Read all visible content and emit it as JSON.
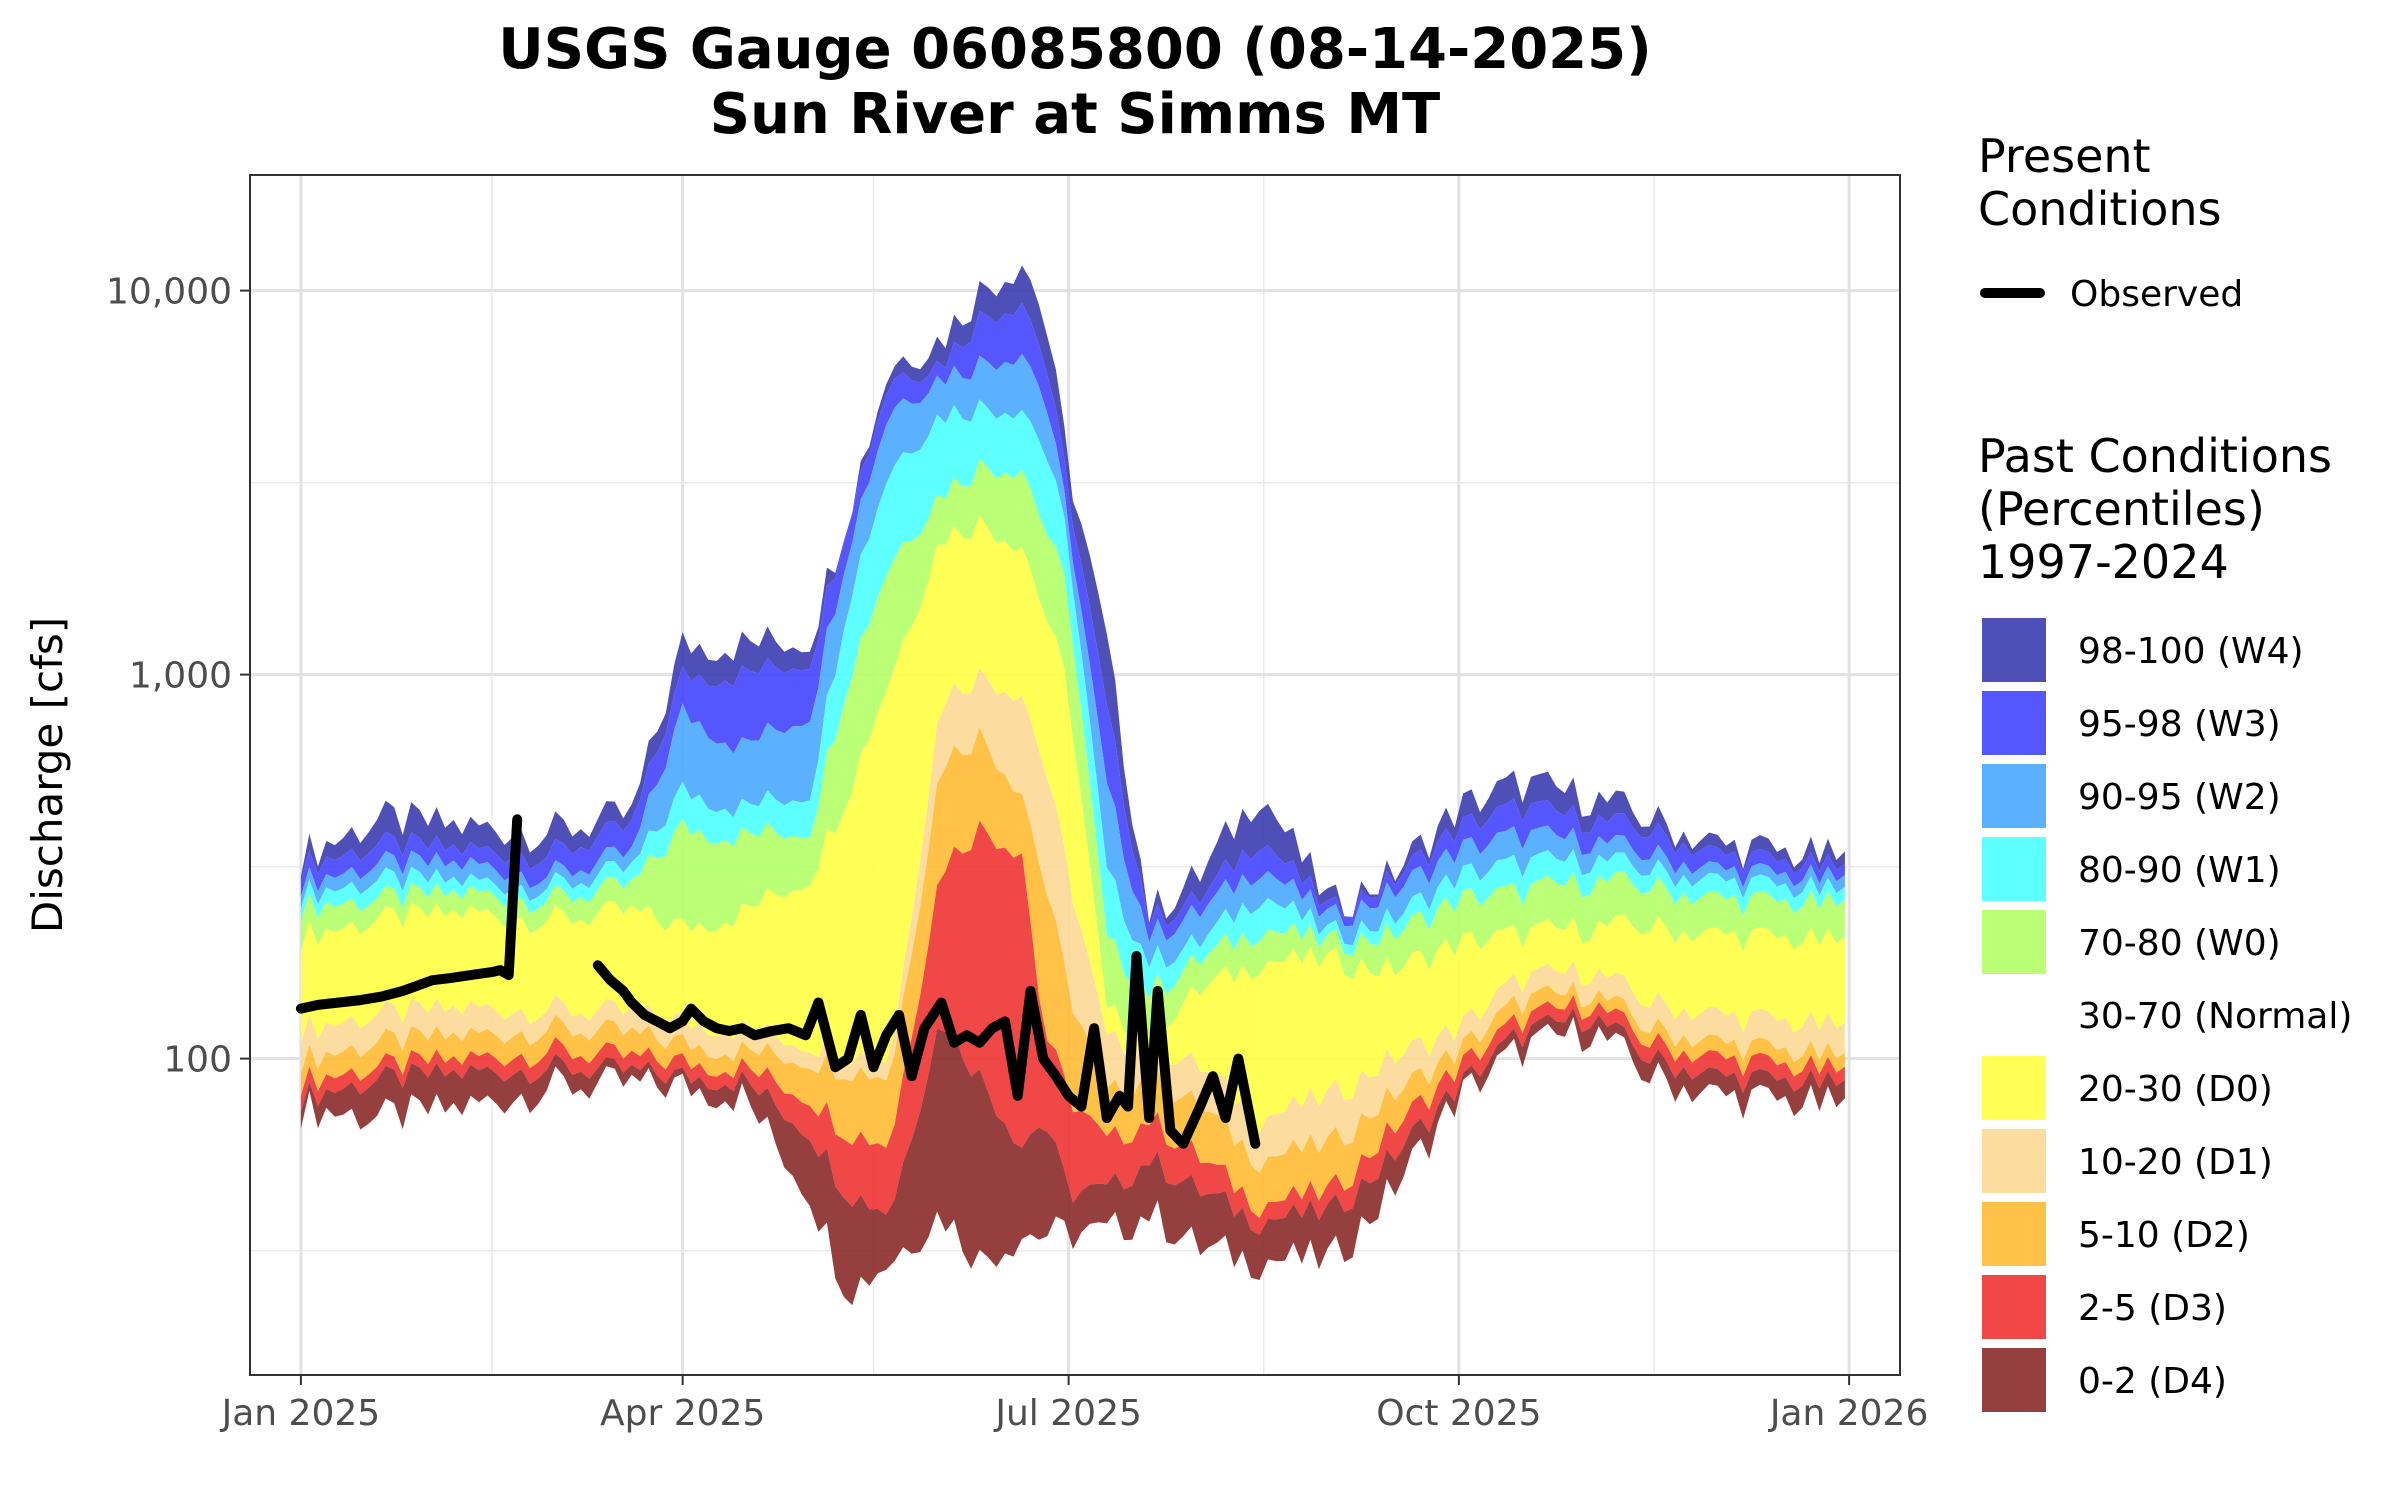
{
  "chart_data": {
    "type": "area",
    "title": "USGS Gauge 06085800 (08-14-2025)",
    "subtitle": "Sun River at Simms MT",
    "xlabel": "",
    "ylabel": "Discharge [cfs]",
    "y_scale": "log10",
    "ylim": [
      15,
      20000
    ],
    "xlim": [
      "2024-12-20",
      "2026-01-13"
    ],
    "x_ticks": [
      {
        "date": "2025-01-01",
        "label": "Jan 2025"
      },
      {
        "date": "2025-04-01",
        "label": "Apr 2025"
      },
      {
        "date": "2025-07-01",
        "label": "Jul 2025"
      },
      {
        "date": "2025-10-01",
        "label": "Oct 2025"
      },
      {
        "date": "2026-01-01",
        "label": "Jan 2026"
      }
    ],
    "x_minor_ticks": [
      "2025-02-15",
      "2025-05-16",
      "2025-08-16",
      "2025-11-16"
    ],
    "y_ticks": [
      {
        "value": 100,
        "label": "100"
      },
      {
        "value": 1000,
        "label": "1,000"
      },
      {
        "value": 10000,
        "label": "10,000"
      }
    ],
    "y_minor_ticks": [
      31.6,
      316,
      3160
    ],
    "grid": true,
    "legend_position": "right",
    "legend": {
      "present_title_line1": "Present",
      "present_title_line2": "Conditions",
      "observed_label": "Observed",
      "past_title_line1": "Past Conditions",
      "past_title_line2": "(Percentiles)",
      "past_title_line3": "1997-2024"
    },
    "percentile_dates": [
      "2025-01-01",
      "2025-01-20",
      "2025-02-10",
      "2025-03-01",
      "2025-03-20",
      "2025-04-01",
      "2025-04-15",
      "2025-05-01",
      "2025-05-10",
      "2025-05-20",
      "2025-06-01",
      "2025-06-10",
      "2025-06-20",
      "2025-06-25",
      "2025-07-01",
      "2025-07-10",
      "2025-07-20",
      "2025-08-01",
      "2025-08-15",
      "2025-09-01",
      "2025-09-15",
      "2025-10-01",
      "2025-10-15",
      "2025-11-01",
      "2025-11-15",
      "2025-12-01",
      "2025-12-31"
    ],
    "bands": [
      {
        "label": "98-100 (W4)",
        "color": "#3c3cb0",
        "low": "p95",
        "high": "p100"
      },
      {
        "label": "95-98 (W3)",
        "color": "#4444ff",
        "low": "p90",
        "high": "p95"
      },
      {
        "label": "90-95 (W2)",
        "color": "#4aa8ff",
        "low": "p80",
        "high": "p90"
      },
      {
        "label": "80-90 (W1)",
        "color": "#4dffff",
        "low": "p70",
        "high": "p80"
      },
      {
        "label": "70-80 (W0)",
        "color": "#b3ff66",
        "low": "p30",
        "high": "p70"
      },
      {
        "label": "30-70 (Normal)",
        "color": "#ffffff",
        "low": "p30",
        "high": "p30"
      },
      {
        "label": "20-30 (D0)",
        "color": "#ffff44",
        "low": "p20",
        "high": "p30"
      },
      {
        "label": "10-20 (D1)",
        "color": "#fcd995",
        "low": "p10",
        "high": "p20"
      },
      {
        "label": "5-10 (D2)",
        "color": "#ffbb33",
        "low": "p5",
        "high": "p10"
      },
      {
        "label": "2-5 (D3)",
        "color": "#ee3333",
        "low": "p2",
        "high": "p5"
      },
      {
        "label": "0-2 (D4)",
        "color": "#8b2a2a",
        "low": "p0",
        "high": "p2"
      }
    ],
    "percentiles": {
      "p100": [
        340,
        420,
        400,
        390,
        430,
        1200,
        1200,
        1250,
        2700,
        6500,
        7500,
        10000,
        12000,
        9000,
        3500,
        1200,
        240,
        300,
        500,
        250,
        300,
        450,
        520,
        480,
        420,
        360,
        330
      ],
      "p95": [
        320,
        360,
        350,
        340,
        400,
        1000,
        1000,
        1100,
        2600,
        6000,
        6500,
        8500,
        9500,
        7000,
        3000,
        800,
        230,
        260,
        380,
        240,
        290,
        400,
        450,
        420,
        390,
        340,
        310
      ],
      "p90": [
        290,
        320,
        320,
        300,
        340,
        800,
        650,
        800,
        2200,
        5000,
        6000,
        6500,
        7000,
        5500,
        2500,
        500,
        210,
        240,
        320,
        230,
        270,
        350,
        380,
        370,
        340,
        310,
        290
      ],
      "p80": [
        270,
        290,
        290,
        280,
        310,
        500,
        450,
        500,
        1600,
        3500,
        4800,
        5000,
        5000,
        4000,
        2200,
        300,
        180,
        200,
        270,
        210,
        230,
        300,
        320,
        330,
        310,
        290,
        270
      ],
      "p70": [
        250,
        260,
        270,
        260,
        280,
        400,
        380,
        400,
        1000,
        2000,
        3000,
        3500,
        3500,
        2500,
        1600,
        200,
        150,
        180,
        220,
        200,
        210,
        260,
        270,
        290,
        280,
        260,
        250
      ],
      "p30": [
        210,
        230,
        240,
        230,
        240,
        220,
        240,
        300,
        500,
        1000,
        2300,
        2500,
        2200,
        1500,
        900,
        130,
        120,
        150,
        180,
        180,
        170,
        200,
        210,
        220,
        220,
        210,
        200
      ],
      "p20": [
        120,
        130,
        135,
        135,
        130,
        125,
        120,
        110,
        105,
        100,
        880,
        1000,
        900,
        600,
        300,
        110,
        110,
        95,
        70,
        80,
        100,
        120,
        160,
        170,
        140,
        130,
        120
      ],
      "p10": [
        100,
        110,
        115,
        120,
        115,
        110,
        105,
        100,
        95,
        90,
        600,
        700,
        500,
        300,
        150,
        80,
        90,
        75,
        55,
        60,
        80,
        105,
        140,
        150,
        120,
        110,
        100
      ],
      "p5": [
        88,
        95,
        100,
        105,
        100,
        98,
        95,
        80,
        65,
        60,
        320,
        400,
        350,
        120,
        80,
        60,
        70,
        55,
        42,
        45,
        65,
        95,
        125,
        140,
        110,
        100,
        92
      ],
      "p2": [
        80,
        88,
        92,
        95,
        92,
        90,
        88,
        65,
        45,
        40,
        130,
        90,
        60,
        70,
        45,
        45,
        55,
        45,
        38,
        40,
        55,
        85,
        115,
        130,
        100,
        90,
        85
      ],
      "p0": [
        75,
        70,
        75,
        85,
        85,
        85,
        80,
        45,
        25,
        30,
        40,
        30,
        35,
        35,
        35,
        35,
        40,
        32,
        30,
        30,
        45,
        80,
        105,
        120,
        90,
        80,
        75
      ]
    },
    "series": [
      {
        "name": "Observed",
        "color": "#000000",
        "segments": [
          {
            "x": [
              "2025-01-01",
              "2025-01-05",
              "2025-01-10",
              "2025-01-15",
              "2025-01-20",
              "2025-01-25",
              "2025-02-01",
              "2025-02-05",
              "2025-02-10",
              "2025-02-15",
              "2025-02-17",
              "2025-02-19",
              "2025-02-21"
            ],
            "y": [
              135,
              138,
              140,
              142,
              145,
              150,
              160,
              162,
              165,
              168,
              170,
              165,
              420
            ]
          },
          {
            "x": [
              "2025-03-12",
              "2025-03-15",
              "2025-03-18",
              "2025-03-20",
              "2025-03-23",
              "2025-03-26",
              "2025-03-29",
              "2025-04-01",
              "2025-04-03",
              "2025-04-06",
              "2025-04-09",
              "2025-04-12",
              "2025-04-15",
              "2025-04-18",
              "2025-04-22",
              "2025-04-26",
              "2025-04-30",
              "2025-05-03",
              "2025-05-07",
              "2025-05-10",
              "2025-05-13",
              "2025-05-16",
              "2025-05-19",
              "2025-05-22",
              "2025-05-25",
              "2025-05-28",
              "2025-06-01",
              "2025-06-04",
              "2025-06-07",
              "2025-06-10",
              "2025-06-13",
              "2025-06-16",
              "2025-06-19",
              "2025-06-22",
              "2025-06-25",
              "2025-06-28",
              "2025-07-01",
              "2025-07-04",
              "2025-07-07",
              "2025-07-10",
              "2025-07-13",
              "2025-07-15",
              "2025-07-17",
              "2025-07-20",
              "2025-07-22",
              "2025-07-25",
              "2025-07-28",
              "2025-08-01",
              "2025-08-04",
              "2025-08-07",
              "2025-08-10",
              "2025-08-14"
            ],
            "y": [
              175,
              160,
              150,
              140,
              130,
              125,
              120,
              125,
              135,
              125,
              120,
              118,
              120,
              115,
              118,
              120,
              115,
              140,
              95,
              100,
              130,
              95,
              115,
              130,
              90,
              120,
              140,
              110,
              115,
              110,
              120,
              125,
              80,
              150,
              100,
              90,
              80,
              75,
              120,
              70,
              80,
              75,
              185,
              70,
              150,
              65,
              60,
              75,
              90,
              70,
              100,
              60
            ]
          }
        ]
      }
    ]
  }
}
